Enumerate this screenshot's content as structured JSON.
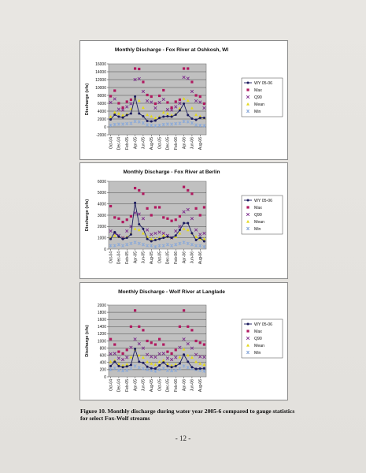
{
  "chart_data": [
    {
      "type": "line",
      "title": "Monthly Discharge - Fox River at Oshkosh, WI",
      "ylabel": "Discharge (cfs)",
      "xlabel": "",
      "ylim": [
        -2000,
        16000
      ],
      "yticks": [
        -2000,
        0,
        2000,
        4000,
        6000,
        8000,
        10000,
        12000,
        14000,
        16000
      ],
      "grid": true,
      "legend": "right",
      "tick_labels": [
        "Oct-04",
        "Dec-04",
        "Feb-05",
        "Apr-05",
        "Jun-05",
        "Aug-05",
        "Oct-05",
        "Dec-05",
        "Feb-06",
        "Apr-06",
        "Jun-06",
        "Aug-06"
      ],
      "categories": [
        "Oct-04",
        "Nov-04",
        "Dec-04",
        "Jan-05",
        "Feb-05",
        "Mar-05",
        "Apr-05",
        "May-05",
        "Jun-05",
        "Jul-05",
        "Aug-05",
        "Sep-05",
        "Oct-05",
        "Nov-05",
        "Dec-05",
        "Jan-06",
        "Feb-06",
        "Mar-06",
        "Apr-06",
        "May-06",
        "Jun-06",
        "Jul-06",
        "Aug-06",
        "Sep-06"
      ],
      "series": [
        {
          "name": "WY 05-06",
          "kind": "line",
          "color": "#1a1a5e",
          "values": [
            1900,
            3100,
            2600,
            2400,
            3000,
            3400,
            7700,
            3400,
            2700,
            1500,
            1400,
            1600,
            2300,
            2600,
            2700,
            2600,
            3100,
            4200,
            5900,
            3000,
            2100,
            1800,
            2300,
            2300
          ]
        },
        {
          "name": "Max",
          "kind": "square",
          "color": "#b0185f",
          "values": [
            7800,
            9200,
            6000,
            4900,
            6400,
            6900,
            14800,
            14700,
            11400,
            8100,
            7700,
            5900,
            7900,
            9300,
            6200,
            4900,
            6400,
            6900,
            14800,
            14800,
            11400,
            8000,
            7700,
            5900
          ]
        },
        {
          "name": "Q90",
          "kind": "x",
          "color": "#7a2a8a",
          "values": [
            6200,
            7100,
            4500,
            4300,
            5100,
            5900,
            12000,
            12200,
            9000,
            6600,
            6300,
            4800,
            6200,
            7000,
            4400,
            4300,
            5100,
            6000,
            12600,
            12300,
            9000,
            6600,
            6300,
            4800
          ]
        },
        {
          "name": "Mean",
          "kind": "triangle",
          "color": "#e3d81c",
          "values": [
            2600,
            3700,
            3400,
            3000,
            3300,
            4600,
            7300,
            6700,
            4900,
            3100,
            2700,
            2300,
            2600,
            3700,
            3400,
            3000,
            3300,
            4700,
            7200,
            6700,
            4800,
            3100,
            2700,
            2300
          ]
        },
        {
          "name": "Min",
          "kind": "star",
          "color": "#8aa9d9",
          "values": [
            400,
            600,
            700,
            700,
            800,
            900,
            1400,
            1300,
            1000,
            500,
            400,
            300,
            400,
            600,
            700,
            700,
            800,
            900,
            1400,
            1300,
            1000,
            500,
            400,
            300
          ]
        }
      ]
    },
    {
      "type": "line",
      "title": "Monthly Discharge - Fox River at Berlin",
      "ylabel": "Discharge (cfs)",
      "xlabel": "",
      "ylim": [
        0,
        6000
      ],
      "yticks": [
        0,
        1000,
        2000,
        3000,
        4000,
        5000,
        6000
      ],
      "grid": true,
      "legend": "right",
      "tick_labels": [
        "Oct-04",
        "Dec-04",
        "Feb-05",
        "Apr-05",
        "Jun-05",
        "Aug-05",
        "Oct-05",
        "Dec-05",
        "Feb-06",
        "Apr-06",
        "Jun-06",
        "Aug-06"
      ],
      "categories": [
        "Oct-04",
        "Nov-04",
        "Dec-04",
        "Jan-05",
        "Feb-05",
        "Mar-05",
        "Apr-05",
        "May-05",
        "Jun-05",
        "Jul-05",
        "Aug-05",
        "Sep-05",
        "Oct-05",
        "Nov-05",
        "Dec-05",
        "Jan-06",
        "Feb-06",
        "Mar-06",
        "Apr-06",
        "May-06",
        "Jun-06",
        "Jul-06",
        "Aug-06",
        "Sep-06"
      ],
      "series": [
        {
          "name": "WY 05-06",
          "kind": "line",
          "color": "#1a1a5e",
          "values": [
            900,
            1500,
            1100,
            900,
            1000,
            1300,
            4100,
            2200,
            1800,
            900,
            700,
            800,
            900,
            1000,
            1100,
            1000,
            1200,
            1700,
            2300,
            2300,
            1400,
            800,
            1000,
            700
          ]
        },
        {
          "name": "Max",
          "kind": "square",
          "color": "#b0185f",
          "values": [
            3800,
            2800,
            2700,
            2400,
            2600,
            2900,
            5400,
            5200,
            4900,
            3600,
            3000,
            3700,
            3700,
            2800,
            2700,
            2500,
            2600,
            2900,
            5500,
            5200,
            4900,
            3600,
            3000,
            3700
          ]
        },
        {
          "name": "Q90",
          "kind": "x",
          "color": "#7a2a8a",
          "values": [
            1600,
            1400,
            1200,
            1000,
            1600,
            2000,
            3200,
            3100,
            2700,
            1700,
            1300,
            1400,
            1500,
            1400,
            1200,
            1000,
            1600,
            2000,
            3300,
            3500,
            2700,
            1700,
            1300,
            1400
          ]
        },
        {
          "name": "Mean",
          "kind": "triangle",
          "color": "#e3d81c",
          "values": [
            1000,
            1200,
            1100,
            1000,
            1100,
            1400,
            1800,
            1700,
            1400,
            1100,
            900,
            900,
            1000,
            1200,
            1100,
            1000,
            1100,
            1400,
            1800,
            1700,
            1400,
            1100,
            900,
            900
          ]
        },
        {
          "name": "Min",
          "kind": "star",
          "color": "#8aa9d9",
          "values": [
            300,
            300,
            400,
            300,
            400,
            500,
            600,
            500,
            400,
            300,
            300,
            200,
            300,
            300,
            400,
            300,
            400,
            500,
            600,
            500,
            400,
            300,
            300,
            200
          ]
        }
      ]
    },
    {
      "type": "line",
      "title": "Monthly Discharge - Wolf River at Langlade",
      "ylabel": "Discharge (cfs)",
      "xlabel": "",
      "ylim": [
        0,
        2000
      ],
      "yticks": [
        0,
        200,
        400,
        600,
        800,
        1000,
        1200,
        1400,
        1600,
        1800,
        2000
      ],
      "grid": true,
      "legend": "right",
      "tick_labels": [
        "Oct-04",
        "Dec-04",
        "Feb-05",
        "Apr-05",
        "Jun-05",
        "Aug-05",
        "Oct-05",
        "Dec-05",
        "Feb-06",
        "Apr-06",
        "Jun-06",
        "Aug-06"
      ],
      "categories": [
        "Oct-04",
        "Nov-04",
        "Dec-04",
        "Jan-05",
        "Feb-05",
        "Mar-05",
        "Apr-05",
        "May-05",
        "Jun-05",
        "Jul-05",
        "Aug-05",
        "Sep-05",
        "Oct-05",
        "Nov-05",
        "Dec-05",
        "Jan-06",
        "Feb-06",
        "Mar-06",
        "Apr-06",
        "May-06",
        "Jun-06",
        "Jul-06",
        "Aug-06",
        "Sep-06"
      ],
      "series": [
        {
          "name": "WY 05-06",
          "kind": "line",
          "color": "#1a1a5e",
          "values": [
            300,
            420,
            300,
            270,
            290,
            330,
            780,
            420,
            390,
            280,
            240,
            230,
            320,
            400,
            300,
            270,
            300,
            370,
            620,
            420,
            270,
            220,
            230,
            240
          ]
        },
        {
          "name": "Max",
          "kind": "square",
          "color": "#b0185f",
          "values": [
            1050,
            900,
            700,
            650,
            750,
            1400,
            1850,
            1400,
            1300,
            1000,
            950,
            900,
            1050,
            900,
            700,
            650,
            750,
            1400,
            1850,
            1400,
            1300,
            1000,
            950,
            900
          ]
        },
        {
          "name": "Q90",
          "kind": "x",
          "color": "#7a2a8a",
          "values": [
            640,
            650,
            520,
            480,
            540,
            820,
            1050,
            920,
            800,
            620,
            560,
            550,
            640,
            650,
            520,
            480,
            540,
            820,
            1050,
            920,
            800,
            620,
            560,
            550
          ]
        },
        {
          "name": "Mean",
          "kind": "triangle",
          "color": "#e3d81c",
          "values": [
            420,
            460,
            360,
            320,
            350,
            550,
            770,
            600,
            540,
            420,
            370,
            340,
            420,
            460,
            360,
            320,
            350,
            550,
            770,
            600,
            540,
            420,
            370,
            340
          ]
        },
        {
          "name": "Min",
          "kind": "star",
          "color": "#8aa9d9",
          "values": [
            200,
            240,
            180,
            170,
            180,
            230,
            300,
            260,
            230,
            200,
            180,
            160,
            200,
            240,
            180,
            170,
            180,
            230,
            300,
            260,
            230,
            200,
            180,
            160
          ]
        }
      ]
    }
  ],
  "caption": "Figure 10. Monthly discharge during water year 2005-6 compared to gauge statistics for select Fox-Wolf streams",
  "page_number": "- 12 -"
}
